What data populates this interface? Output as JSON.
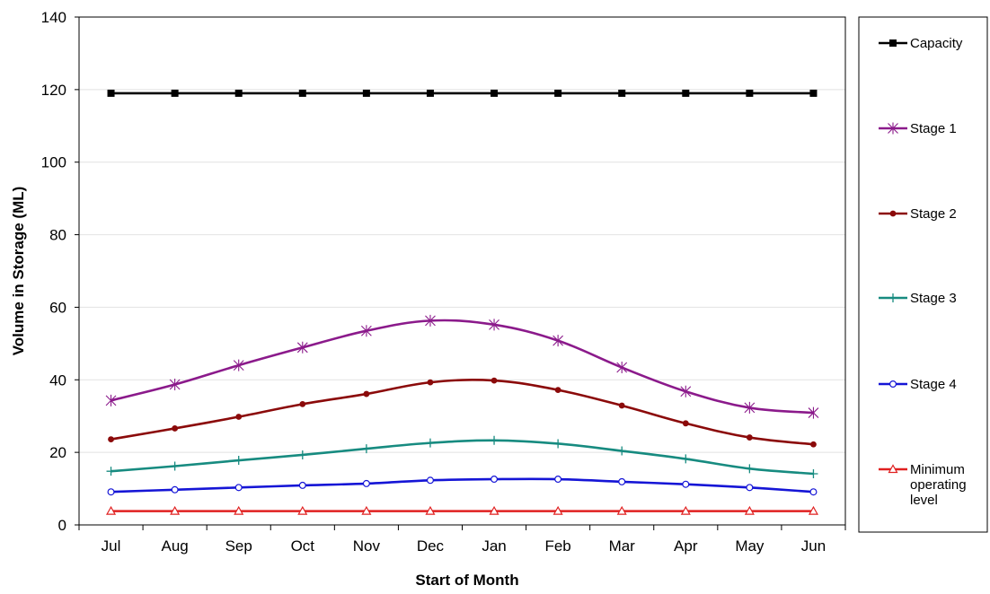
{
  "chart_data": {
    "type": "line",
    "title": "",
    "xlabel": "Start of Month",
    "ylabel": "Volume in Storage (ML)",
    "ylim": [
      0,
      140
    ],
    "yticks": [
      0,
      20,
      40,
      60,
      80,
      100,
      120,
      140
    ],
    "grid": true,
    "legend_position": "right",
    "categories": [
      "Jul",
      "Aug",
      "Sep",
      "Oct",
      "Nov",
      "Dec",
      "Jan",
      "Feb",
      "Mar",
      "Apr",
      "May",
      "Jun"
    ],
    "series": [
      {
        "name": "Capacity",
        "color": "#000000",
        "marker": "square",
        "values": [
          119,
          119,
          119,
          119,
          119,
          119,
          119,
          119,
          119,
          119,
          119,
          119
        ]
      },
      {
        "name": "Stage 1",
        "color": "#8B1A8B",
        "marker": "asterisk",
        "values": [
          34.3,
          38.7,
          44.0,
          48.9,
          53.5,
          56.3,
          55.2,
          50.8,
          43.4,
          36.8,
          32.3,
          30.9
        ]
      },
      {
        "name": "Stage 2",
        "color": "#8B0A0A",
        "marker": "circle",
        "values": [
          23.6,
          26.6,
          29.8,
          33.3,
          36.1,
          39.3,
          39.8,
          37.2,
          32.9,
          28.0,
          24.1,
          22.2
        ]
      },
      {
        "name": "Stage 3",
        "color": "#178B80",
        "marker": "plus",
        "values": [
          14.8,
          16.2,
          17.8,
          19.3,
          21.0,
          22.6,
          23.3,
          22.4,
          20.4,
          18.2,
          15.5,
          14.1
        ]
      },
      {
        "name": "Stage 4",
        "color": "#1515D6",
        "marker": "open-circle",
        "values": [
          9.1,
          9.7,
          10.3,
          10.9,
          11.4,
          12.3,
          12.6,
          12.6,
          11.9,
          11.2,
          10.3,
          9.1
        ]
      },
      {
        "name": "Minimum operating level",
        "legend_lines": [
          "Minimum",
          "operating",
          "level"
        ],
        "color": "#E02020",
        "marker": "triangle",
        "values": [
          3.8,
          3.8,
          3.8,
          3.8,
          3.8,
          3.8,
          3.8,
          3.8,
          3.8,
          3.8,
          3.8,
          3.8
        ]
      }
    ]
  }
}
